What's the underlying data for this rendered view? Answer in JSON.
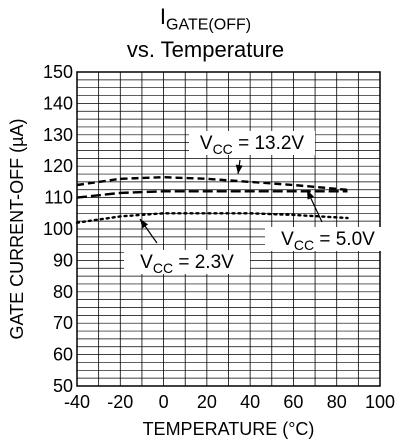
{
  "title": {
    "main": "I",
    "main_sub": "GATE(OFF)",
    "line2": "vs. Temperature"
  },
  "chart_data": {
    "type": "line",
    "xlabel": "TEMPERATURE (°C)",
    "ylabel": "GATE CURRENT-OFF (µA)",
    "xlim": [
      -40,
      100
    ],
    "ylim": [
      50,
      150
    ],
    "x_ticks": [
      "-40",
      "-20",
      "0",
      "20",
      "40",
      "60",
      "80",
      "100"
    ],
    "y_ticks": [
      "50",
      "60",
      "70",
      "80",
      "90",
      "100",
      "110",
      "120",
      "130",
      "140",
      "150"
    ],
    "grid": true,
    "series": [
      {
        "name_prefix": "V",
        "name_sub": "CC",
        "name_suffix": " = 13.2V",
        "style": "dashed",
        "x": [
          -40,
          -20,
          0,
          20,
          40,
          60,
          85
        ],
        "y": [
          114,
          116,
          116.5,
          116,
          115,
          114,
          112.5
        ]
      },
      {
        "name_prefix": "V",
        "name_sub": "CC",
        "name_suffix": " = 5.0V",
        "style": "longdash",
        "x": [
          -40,
          -20,
          0,
          20,
          40,
          60,
          85
        ],
        "y": [
          110,
          111.5,
          112,
          112,
          112,
          112,
          112
        ]
      },
      {
        "name_prefix": "V",
        "name_sub": "CC",
        "name_suffix": " = 2.3V",
        "style": "dotted",
        "x": [
          -40,
          -20,
          0,
          20,
          40,
          60,
          85
        ],
        "y": [
          102,
          104,
          105,
          105,
          105,
          104.5,
          103.5
        ]
      }
    ]
  }
}
